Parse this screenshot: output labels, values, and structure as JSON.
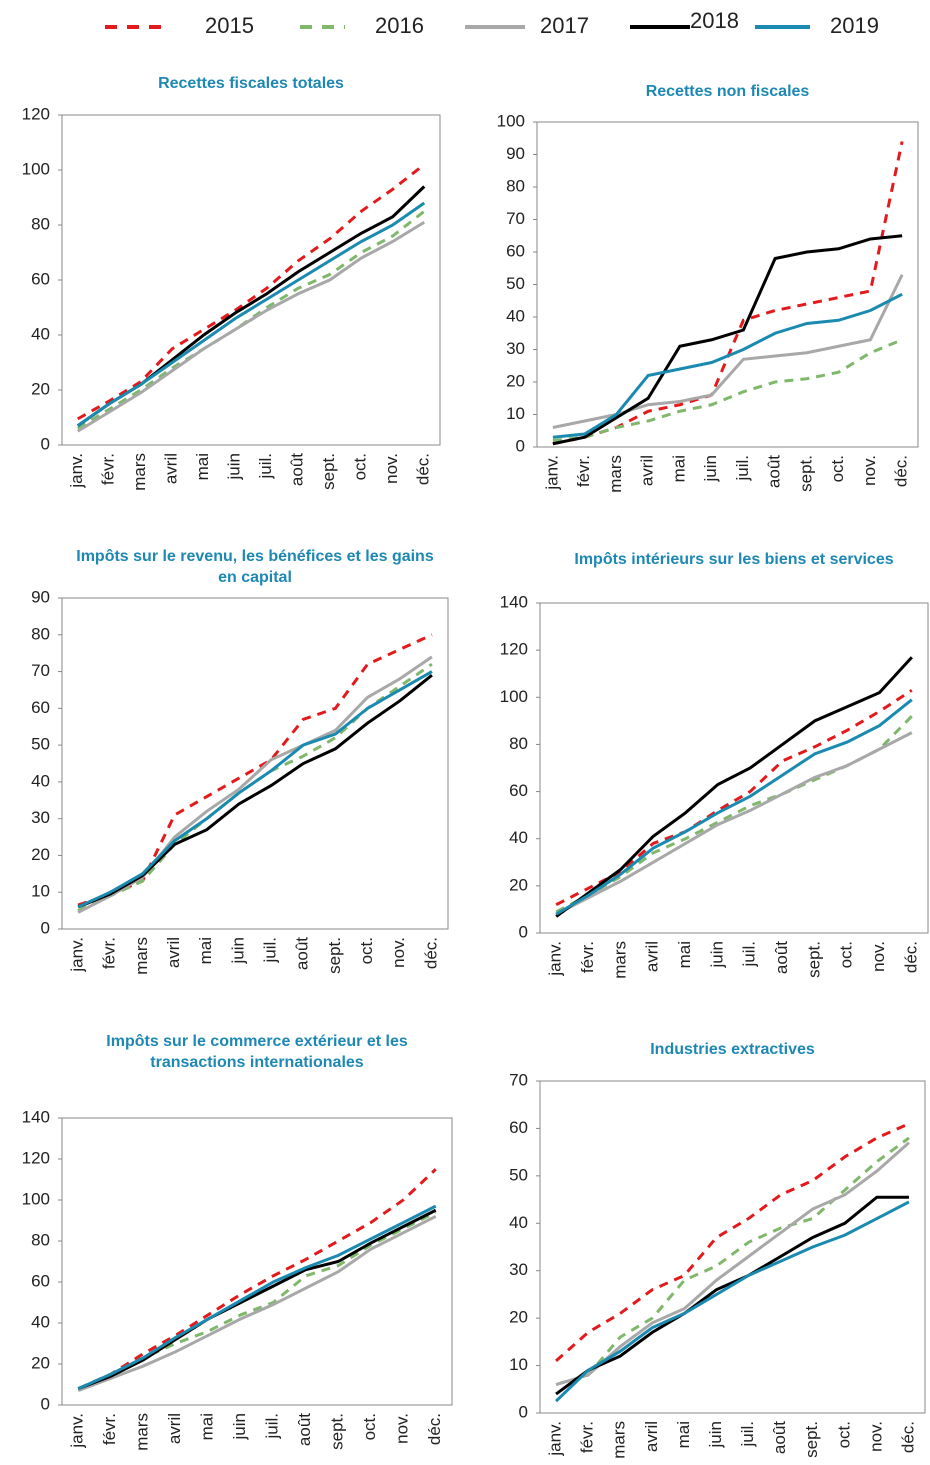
{
  "chart_data": [
    {
      "type": "line",
      "title": "Recettes fiscales totales",
      "categories": [
        "janv.",
        "févr.",
        "mars",
        "avril",
        "mai",
        "juin",
        "juil.",
        "août",
        "sept.",
        "oct.",
        "nov.",
        "déc."
      ],
      "ylim": [
        0,
        120
      ],
      "yticks": [
        0,
        20,
        40,
        60,
        80,
        100,
        120
      ],
      "series": [
        {
          "name": "2015",
          "color": "#e31a1c",
          "dashed": true,
          "values": [
            9.5,
            16,
            23,
            35,
            42,
            49,
            57,
            67,
            75,
            85,
            93,
            102
          ]
        },
        {
          "name": "2016",
          "color": "#7fb86a",
          "dashed": true,
          "values": [
            6,
            13,
            20,
            28,
            35,
            42,
            50,
            57,
            62,
            70,
            76,
            85
          ]
        },
        {
          "name": "2017",
          "color": "#a8a8a8",
          "dashed": false,
          "values": [
            5,
            12,
            19,
            27,
            35,
            42,
            49,
            55,
            60,
            68,
            74,
            81
          ]
        },
        {
          "name": "2018",
          "color": "#000000",
          "dashed": false,
          "values": [
            7,
            15,
            22,
            31,
            40,
            48,
            55,
            63,
            70,
            77,
            83,
            94
          ]
        },
        {
          "name": "2019",
          "color": "#1b8ab0",
          "dashed": false,
          "values": [
            7,
            15,
            22,
            30,
            38,
            46,
            53,
            60,
            67,
            74,
            80,
            88
          ]
        }
      ]
    },
    {
      "type": "line",
      "title": "Recettes non fiscales",
      "categories": [
        "janv.",
        "févr.",
        "mars",
        "avril",
        "mai",
        "juin",
        "juil.",
        "août",
        "sept.",
        "oct.",
        "nov.",
        "déc."
      ],
      "ylim": [
        0,
        100
      ],
      "yticks": [
        0,
        10,
        20,
        30,
        40,
        50,
        60,
        70,
        80,
        90,
        100
      ],
      "series": [
        {
          "name": "2015",
          "color": "#e31a1c",
          "dashed": true,
          "values": [
            1,
            3,
            6,
            11,
            13,
            16,
            39,
            42,
            44,
            46,
            48,
            94
          ]
        },
        {
          "name": "2016",
          "color": "#7fb86a",
          "dashed": true,
          "values": [
            2,
            3,
            6,
            8,
            11,
            13,
            17,
            20,
            21,
            23,
            29,
            33
          ]
        },
        {
          "name": "2017",
          "color": "#a8a8a8",
          "dashed": false,
          "values": [
            6,
            8,
            10,
            13,
            14,
            16,
            27,
            28,
            29,
            31,
            33,
            53
          ]
        },
        {
          "name": "2018",
          "color": "#000000",
          "dashed": false,
          "values": [
            1,
            3,
            9,
            15,
            31,
            33,
            36,
            58,
            60,
            61,
            64,
            65
          ]
        },
        {
          "name": "2019",
          "color": "#1b8ab0",
          "dashed": false,
          "values": [
            3,
            4,
            10,
            22,
            24,
            26,
            30,
            35,
            38,
            39,
            42,
            47
          ]
        }
      ]
    },
    {
      "type": "line",
      "title": "Impôts sur le revenu, les bénéfices et les gains en capital",
      "categories": [
        "janv.",
        "févr.",
        "mars",
        "avril",
        "mai",
        "juin",
        "juil.",
        "août",
        "sept.",
        "oct.",
        "nov.",
        "déc."
      ],
      "ylim": [
        0,
        90
      ],
      "yticks": [
        0,
        10,
        20,
        30,
        40,
        50,
        60,
        70,
        80,
        90
      ],
      "series": [
        {
          "name": "2015",
          "color": "#e31a1c",
          "dashed": true,
          "values": [
            6.5,
            9.5,
            13,
            31,
            36,
            41,
            46,
            57,
            60,
            72,
            76,
            80
          ]
        },
        {
          "name": "2016",
          "color": "#7fb86a",
          "dashed": true,
          "values": [
            5,
            9,
            13,
            23,
            30,
            37,
            43,
            47,
            52,
            60,
            66,
            72
          ]
        },
        {
          "name": "2017",
          "color": "#a8a8a8",
          "dashed": false,
          "values": [
            4.5,
            9,
            14,
            25,
            32,
            38,
            46,
            50,
            54,
            63,
            68,
            74
          ]
        },
        {
          "name": "2018",
          "color": "#000000",
          "dashed": false,
          "values": [
            6,
            9.5,
            14.5,
            23,
            27,
            34,
            39,
            45,
            49,
            56,
            62,
            69
          ]
        },
        {
          "name": "2019",
          "color": "#1b8ab0",
          "dashed": false,
          "values": [
            6,
            10,
            15,
            24,
            30,
            37,
            43,
            50,
            53,
            60,
            65,
            70
          ]
        }
      ]
    },
    {
      "type": "line",
      "title": "Impôts intérieurs sur les biens et services",
      "categories": [
        "janv.",
        "févr.",
        "mars",
        "avril",
        "mai",
        "juin",
        "juil.",
        "août",
        "sept.",
        "oct.",
        "nov.",
        "déc."
      ],
      "ylim": [
        0,
        140
      ],
      "yticks": [
        0,
        20,
        40,
        60,
        80,
        100,
        120,
        140
      ],
      "series": [
        {
          "name": "2015",
          "color": "#e31a1c",
          "dashed": true,
          "values": [
            12,
            19,
            26,
            38,
            43,
            52,
            60,
            73,
            79,
            86,
            94,
            103
          ]
        },
        {
          "name": "2016",
          "color": "#7fb86a",
          "dashed": true,
          "values": [
            9,
            16,
            24,
            34,
            40,
            47,
            54,
            59,
            65,
            71,
            78,
            92
          ]
        },
        {
          "name": "2017",
          "color": "#a8a8a8",
          "dashed": false,
          "values": [
            8,
            15,
            22,
            30,
            38,
            46,
            52,
            59,
            66,
            71,
            78,
            85
          ]
        },
        {
          "name": "2018",
          "color": "#000000",
          "dashed": false,
          "values": [
            7,
            17,
            27,
            41,
            51,
            63,
            70,
            80,
            90,
            96,
            102,
            117
          ]
        },
        {
          "name": "2019",
          "color": "#1b8ab0",
          "dashed": false,
          "values": [
            8,
            16,
            25,
            36,
            43,
            51,
            58,
            67,
            76,
            81,
            88,
            99
          ]
        }
      ]
    },
    {
      "type": "line",
      "title": "Impôts sur le commerce extérieur et les transactions internationales",
      "categories": [
        "janv.",
        "févr.",
        "mars",
        "avril",
        "mai",
        "juin",
        "juil.",
        "août",
        "sept.",
        "oct.",
        "nov.",
        "déc."
      ],
      "ylim": [
        0,
        140
      ],
      "yticks": [
        0,
        20,
        40,
        60,
        80,
        100,
        120,
        140
      ],
      "series": [
        {
          "name": "2015",
          "color": "#e31a1c",
          "dashed": true,
          "values": [
            8,
            15,
            25,
            34,
            44,
            54,
            63,
            71,
            80,
            89,
            100,
            115
          ]
        },
        {
          "name": "2016",
          "color": "#7fb86a",
          "dashed": true,
          "values": [
            8,
            15,
            23,
            30,
            36,
            44,
            50,
            63,
            68,
            78,
            86,
            94
          ]
        },
        {
          "name": "2017",
          "color": "#a8a8a8",
          "dashed": false,
          "values": [
            7,
            13,
            19,
            26,
            34,
            42,
            49,
            57,
            65,
            76,
            84,
            92
          ]
        },
        {
          "name": "2018",
          "color": "#000000",
          "dashed": false,
          "values": [
            8,
            14,
            22,
            32,
            42,
            50,
            58,
            66,
            70,
            79,
            87,
            95
          ]
        },
        {
          "name": "2019",
          "color": "#1b8ab0",
          "dashed": false,
          "values": [
            8,
            15,
            23,
            33,
            42,
            51,
            60,
            67,
            73,
            81,
            89,
            97
          ]
        }
      ]
    },
    {
      "type": "line",
      "title": "Industries extractives",
      "categories": [
        "janv.",
        "févr.",
        "mars",
        "avril",
        "mai",
        "juin",
        "juil.",
        "août",
        "sept.",
        "oct.",
        "nov.",
        "déc."
      ],
      "ylim": [
        0,
        70
      ],
      "yticks": [
        0,
        10,
        20,
        30,
        40,
        50,
        60,
        70
      ],
      "series": [
        {
          "name": "2015",
          "color": "#e31a1c",
          "dashed": true,
          "values": [
            11,
            17,
            21,
            26,
            29,
            37,
            41,
            46,
            49,
            54,
            58,
            61
          ]
        },
        {
          "name": "2016",
          "color": "#7fb86a",
          "dashed": true,
          "values": [
            6,
            8,
            16,
            20,
            28,
            31,
            36,
            39,
            41,
            47,
            53,
            58
          ]
        },
        {
          "name": "2017",
          "color": "#a8a8a8",
          "dashed": false,
          "values": [
            6,
            8,
            14,
            19,
            22,
            28,
            33,
            38,
            43,
            46,
            51,
            57
          ]
        },
        {
          "name": "2018",
          "color": "#000000",
          "dashed": false,
          "values": [
            4,
            9,
            12,
            17,
            21,
            26,
            29,
            33,
            37,
            40,
            45.5,
            45.5
          ]
        },
        {
          "name": "2019",
          "color": "#1b8ab0",
          "dashed": false,
          "values": [
            2.5,
            9,
            13,
            18,
            21,
            25,
            29,
            32,
            35,
            37.5,
            41,
            44.5
          ]
        }
      ]
    }
  ]
}
